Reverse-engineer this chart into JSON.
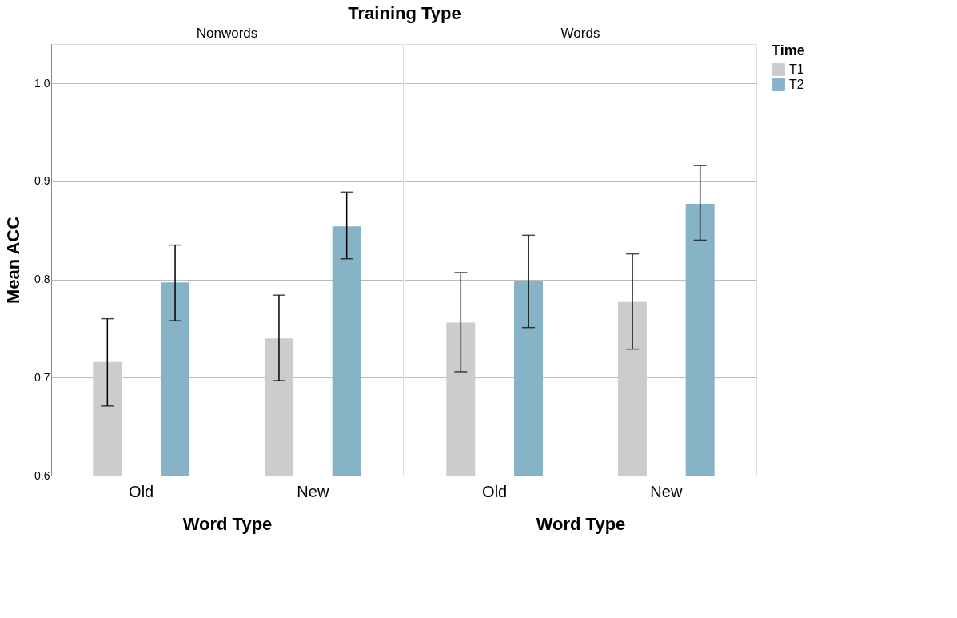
{
  "chart_data": [
    {
      "type": "bar",
      "title": "Training Type",
      "subtitle": "Nonwords",
      "xlabel": "Word Type",
      "ylabel": "Mean ACC",
      "legend_title": "Time",
      "categories": [
        "Old",
        "New"
      ],
      "ylim": [
        0.6,
        1.04
      ],
      "yticks": [
        0.6,
        0.7,
        0.8,
        0.9,
        {
          "value": 1,
          "label": "1.0"
        }
      ],
      "grid": "y",
      "legend": "top right",
      "series": [
        {
          "name": "T1",
          "color": "#cccccc",
          "values": [
            0.716,
            0.74
          ],
          "errors": [
            [
              0.671,
              0.76
            ],
            [
              0.697,
              0.784
            ]
          ]
        },
        {
          "name": "T2",
          "color": "#86b3c6",
          "values": [
            0.797,
            0.854
          ],
          "errors": [
            [
              0.758,
              0.835
            ],
            [
              0.821,
              0.889
            ]
          ]
        }
      ]
    },
    {
      "type": "bar",
      "subtitle": "Words",
      "xlabel": "Word Type",
      "categories": [
        "Old",
        "New"
      ],
      "ylim": [
        0.6,
        1.04
      ],
      "yticks": [
        0.6,
        0.7,
        0.8,
        0.9,
        1
      ],
      "grid": "y",
      "legend": "top right",
      "tick_labels": "x",
      "series": [
        {
          "name": "T1",
          "color": "#cccccc",
          "values": [
            0.756,
            0.777
          ],
          "errors": [
            [
              0.706,
              0.807
            ],
            [
              0.729,
              0.826
            ]
          ]
        },
        {
          "name": "T2",
          "color": "#86b3c6",
          "values": [
            0.798,
            0.877
          ],
          "errors": [
            [
              0.751,
              0.845
            ],
            [
              0.84,
              0.916
            ]
          ]
        }
      ]
    }
  ]
}
